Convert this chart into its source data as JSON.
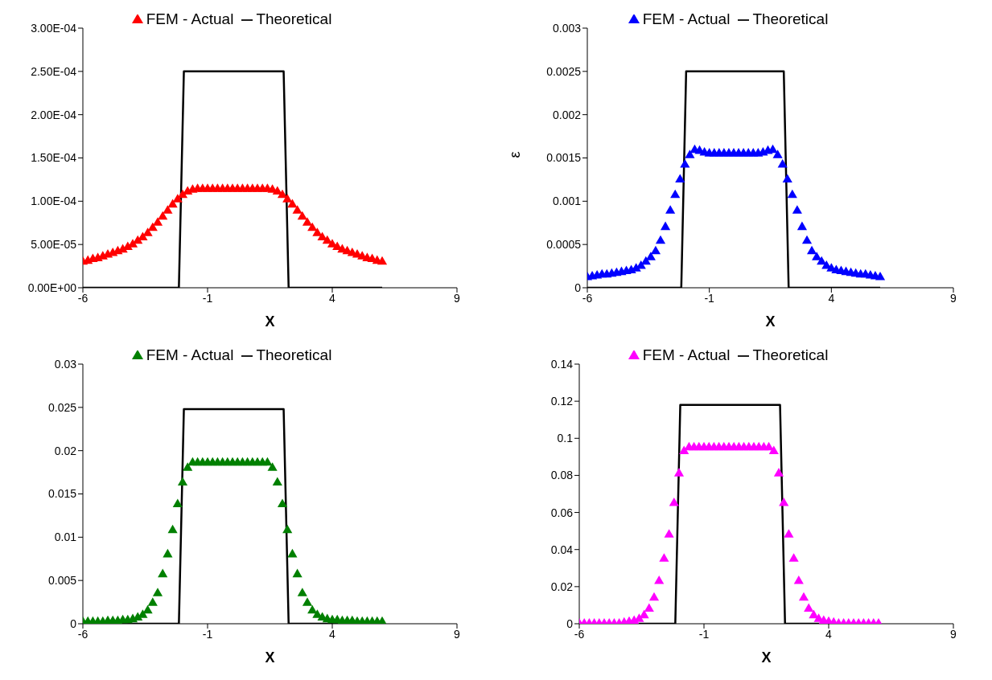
{
  "chart_data": [
    {
      "type": "scatter",
      "xlabel": "X",
      "legend": "top",
      "xlim": [
        -6,
        9
      ],
      "xticks": [
        -6,
        -1,
        4,
        9
      ],
      "ylim": [
        0,
        0.0003
      ],
      "yticks": [
        {
          "value": 0,
          "label": "0.00E+00"
        },
        {
          "value": 5e-05,
          "label": "5.00E-05"
        },
        {
          "value": 0.0001,
          "label": "1.00E-04"
        },
        {
          "value": 0.00015,
          "label": "1.50E-04"
        },
        {
          "value": 0.0002,
          "label": "2.00E-04"
        },
        {
          "value": 0.00025,
          "label": "2.50E-04"
        },
        {
          "value": 0.0003,
          "label": "3.00E-04"
        }
      ],
      "x": [
        -6,
        -5.8,
        -5.6,
        -5.4,
        -5.2,
        -5,
        -4.8,
        -4.6,
        -4.4,
        -4.2,
        -4,
        -3.8,
        -3.6,
        -3.4,
        -3.2,
        -3,
        -2.8,
        -2.6,
        -2.4,
        -2.2,
        -2,
        -1.8,
        -1.6,
        -1.4,
        -1.2,
        -1,
        -0.8,
        -0.6,
        -0.4,
        -0.2,
        0,
        0.2,
        0.4,
        0.6,
        0.8,
        1,
        1.2,
        1.4,
        1.6,
        1.8,
        2,
        2.2,
        2.4,
        2.6,
        2.8,
        3,
        3.2,
        3.4,
        3.6,
        3.8,
        4,
        4.2,
        4.4,
        4.6,
        4.8,
        5,
        5.2,
        5.4,
        5.6,
        5.8,
        6
      ],
      "series": [
        {
          "name": "FEM - Actual",
          "marker": "triangle",
          "color": "#ff0000",
          "values": [
            3e-05,
            3.1e-05,
            3.3e-05,
            3.4e-05,
            3.6e-05,
            3.8e-05,
            4e-05,
            4.2e-05,
            4.4e-05,
            4.7e-05,
            5e-05,
            5.4e-05,
            5.8e-05,
            6.3e-05,
            6.9e-05,
            7.5e-05,
            8.2e-05,
            8.9e-05,
            9.6e-05,
            0.000102,
            0.000107,
            0.000111,
            0.000113,
            0.000114,
            0.000114,
            0.000114,
            0.000114,
            0.000114,
            0.000114,
            0.000114,
            0.000114,
            0.000114,
            0.000114,
            0.000114,
            0.000114,
            0.000114,
            0.000114,
            0.000114,
            0.000113,
            0.000111,
            0.000107,
            0.000102,
            9.6e-05,
            8.9e-05,
            8.2e-05,
            7.5e-05,
            6.9e-05,
            6.3e-05,
            5.8e-05,
            5.4e-05,
            5e-05,
            4.7e-05,
            4.4e-05,
            4.2e-05,
            4e-05,
            3.8e-05,
            3.6e-05,
            3.4e-05,
            3.3e-05,
            3.1e-05,
            3e-05
          ]
        },
        {
          "name": "Theoretical",
          "type": "line",
          "marker": "none",
          "color": "#000000",
          "x": [
            -6,
            -2.15,
            -1.95,
            2.05,
            2.25,
            6
          ],
          "values": [
            0,
            0,
            0.00025,
            0.00025,
            0,
            0
          ]
        }
      ]
    },
    {
      "type": "scatter",
      "xlabel": "X",
      "ylabel": "ε",
      "legend": "top",
      "xlim": [
        -6,
        9
      ],
      "xticks": [
        -6,
        -1,
        4,
        9
      ],
      "ylim": [
        0,
        0.003
      ],
      "yticks": [
        0,
        0.0005,
        0.001,
        0.0015,
        0.002,
        0.0025,
        0.003
      ],
      "x": [
        -6,
        -5.8,
        -5.6,
        -5.4,
        -5.2,
        -5,
        -4.8,
        -4.6,
        -4.4,
        -4.2,
        -4,
        -3.8,
        -3.6,
        -3.4,
        -3.2,
        -3,
        -2.8,
        -2.6,
        -2.4,
        -2.2,
        -2,
        -1.8,
        -1.6,
        -1.4,
        -1.2,
        -1,
        -0.8,
        -0.6,
        -0.4,
        -0.2,
        0,
        0.2,
        0.4,
        0.6,
        0.8,
        1,
        1.2,
        1.4,
        1.6,
        1.8,
        2,
        2.2,
        2.4,
        2.6,
        2.8,
        3,
        3.2,
        3.4,
        3.6,
        3.8,
        4,
        4.2,
        4.4,
        4.6,
        4.8,
        5,
        5.2,
        5.4,
        5.6,
        5.8,
        6
      ],
      "series": [
        {
          "name": "FEM - Actual",
          "marker": "triangle",
          "color": "#0000ff",
          "values": [
            0.00012,
            0.00013,
            0.00014,
            0.00015,
            0.00015,
            0.00016,
            0.00017,
            0.00018,
            0.00019,
            0.0002,
            0.00022,
            0.00025,
            0.0003,
            0.00035,
            0.00042,
            0.00054,
            0.0007,
            0.00089,
            0.00107,
            0.00125,
            0.00142,
            0.00153,
            0.00159,
            0.00158,
            0.00156,
            0.00155,
            0.00155,
            0.00155,
            0.00155,
            0.00155,
            0.00155,
            0.00155,
            0.00155,
            0.00155,
            0.00155,
            0.00155,
            0.00156,
            0.00158,
            0.00159,
            0.00153,
            0.00142,
            0.00125,
            0.00107,
            0.00089,
            0.0007,
            0.00054,
            0.00042,
            0.00035,
            0.0003,
            0.00025,
            0.00022,
            0.0002,
            0.00019,
            0.00018,
            0.00017,
            0.00016,
            0.00015,
            0.00015,
            0.00014,
            0.00013,
            0.00012
          ]
        },
        {
          "name": "Theoretical",
          "type": "line",
          "marker": "none",
          "color": "#000000",
          "x": [
            -6,
            -2.15,
            -1.95,
            2.05,
            2.25,
            6
          ],
          "values": [
            0,
            0,
            0.0025,
            0.0025,
            0,
            0
          ]
        }
      ]
    },
    {
      "type": "scatter",
      "xlabel": "X",
      "legend": "top",
      "xlim": [
        -6,
        9
      ],
      "xticks": [
        -6,
        -1,
        4,
        9
      ],
      "ylim": [
        0,
        0.03
      ],
      "yticks": [
        0,
        0.005,
        0.01,
        0.015,
        0.02,
        0.025,
        0.03
      ],
      "x": [
        -6,
        -5.8,
        -5.6,
        -5.4,
        -5.2,
        -5,
        -4.8,
        -4.6,
        -4.4,
        -4.2,
        -4,
        -3.8,
        -3.6,
        -3.4,
        -3.2,
        -3,
        -2.8,
        -2.6,
        -2.4,
        -2.2,
        -2,
        -1.8,
        -1.6,
        -1.4,
        -1.2,
        -1,
        -0.8,
        -0.6,
        -0.4,
        -0.2,
        0,
        0.2,
        0.4,
        0.6,
        0.8,
        1,
        1.2,
        1.4,
        1.6,
        1.8,
        2,
        2.2,
        2.4,
        2.6,
        2.8,
        3,
        3.2,
        3.4,
        3.6,
        3.8,
        4,
        4.2,
        4.4,
        4.6,
        4.8,
        5,
        5.2,
        5.4,
        5.6,
        5.8,
        6
      ],
      "series": [
        {
          "name": "FEM - Actual",
          "marker": "triangle",
          "color": "#008000",
          "values": [
            0.0002,
            0.0002,
            0.0002,
            0.0002,
            0.0002,
            0.0003,
            0.0003,
            0.0003,
            0.0004,
            0.0004,
            0.0005,
            0.0007,
            0.001,
            0.0015,
            0.0024,
            0.0035,
            0.0057,
            0.008,
            0.0108,
            0.0138,
            0.0163,
            0.018,
            0.0186,
            0.0186,
            0.0186,
            0.0186,
            0.0186,
            0.0186,
            0.0186,
            0.0186,
            0.0186,
            0.0186,
            0.0186,
            0.0186,
            0.0186,
            0.0186,
            0.0186,
            0.0186,
            0.018,
            0.0163,
            0.0138,
            0.0108,
            0.008,
            0.0057,
            0.0035,
            0.0024,
            0.0015,
            0.001,
            0.0007,
            0.0005,
            0.0004,
            0.0004,
            0.0003,
            0.0003,
            0.0003,
            0.0002,
            0.0002,
            0.0002,
            0.0002,
            0.0002,
            0.0002
          ]
        },
        {
          "name": "Theoretical",
          "type": "line",
          "marker": "none",
          "color": "#000000",
          "x": [
            -4.5,
            -2.15,
            -1.95,
            2.05,
            2.25,
            4.5
          ],
          "values": [
            0,
            0,
            0.0248,
            0.0248,
            0,
            0
          ]
        }
      ]
    },
    {
      "type": "scatter",
      "xlabel": "X",
      "legend": "top",
      "xlim": [
        -6,
        9
      ],
      "xticks": [
        -6,
        -1,
        4,
        9
      ],
      "ylim": [
        0,
        0.14
      ],
      "yticks": [
        0,
        0.02,
        0.04,
        0.06,
        0.08,
        0.1,
        0.12,
        0.14
      ],
      "x": [
        -6,
        -5.8,
        -5.6,
        -5.4,
        -5.2,
        -5,
        -4.8,
        -4.6,
        -4.4,
        -4.2,
        -4,
        -3.8,
        -3.6,
        -3.4,
        -3.2,
        -3,
        -2.8,
        -2.6,
        -2.4,
        -2.2,
        -2,
        -1.8,
        -1.6,
        -1.4,
        -1.2,
        -1,
        -0.8,
        -0.6,
        -0.4,
        -0.2,
        0,
        0.2,
        0.4,
        0.6,
        0.8,
        1,
        1.2,
        1.4,
        1.6,
        1.8,
        2,
        2.2,
        2.4,
        2.6,
        2.8,
        3,
        3.2,
        3.4,
        3.6,
        3.8,
        4,
        4.2,
        4.4,
        4.6,
        4.8,
        5,
        5.2,
        5.4,
        5.6,
        5.8,
        6
      ],
      "series": [
        {
          "name": "FEM - Actual",
          "marker": "triangle",
          "color": "#ff00ff",
          "values": [
            0,
            0,
            0,
            0,
            0,
            0,
            0,
            0,
            0,
            0.0005,
            0.001,
            0.0015,
            0.0025,
            0.0045,
            0.008,
            0.014,
            0.023,
            0.035,
            0.048,
            0.065,
            0.081,
            0.093,
            0.095,
            0.095,
            0.095,
            0.095,
            0.095,
            0.095,
            0.095,
            0.095,
            0.095,
            0.095,
            0.095,
            0.095,
            0.095,
            0.095,
            0.095,
            0.095,
            0.095,
            0.093,
            0.081,
            0.065,
            0.048,
            0.035,
            0.023,
            0.014,
            0.008,
            0.0045,
            0.0025,
            0.0015,
            0.001,
            0.0005,
            0,
            0,
            0,
            0,
            0,
            0,
            0,
            0,
            0
          ]
        },
        {
          "name": "Theoretical",
          "type": "line",
          "marker": "none",
          "color": "#000000",
          "x": [
            -3.8,
            -2.15,
            -1.95,
            2.05,
            2.25,
            3.8
          ],
          "values": [
            0,
            0,
            0.118,
            0.118,
            0,
            0
          ]
        }
      ]
    }
  ]
}
